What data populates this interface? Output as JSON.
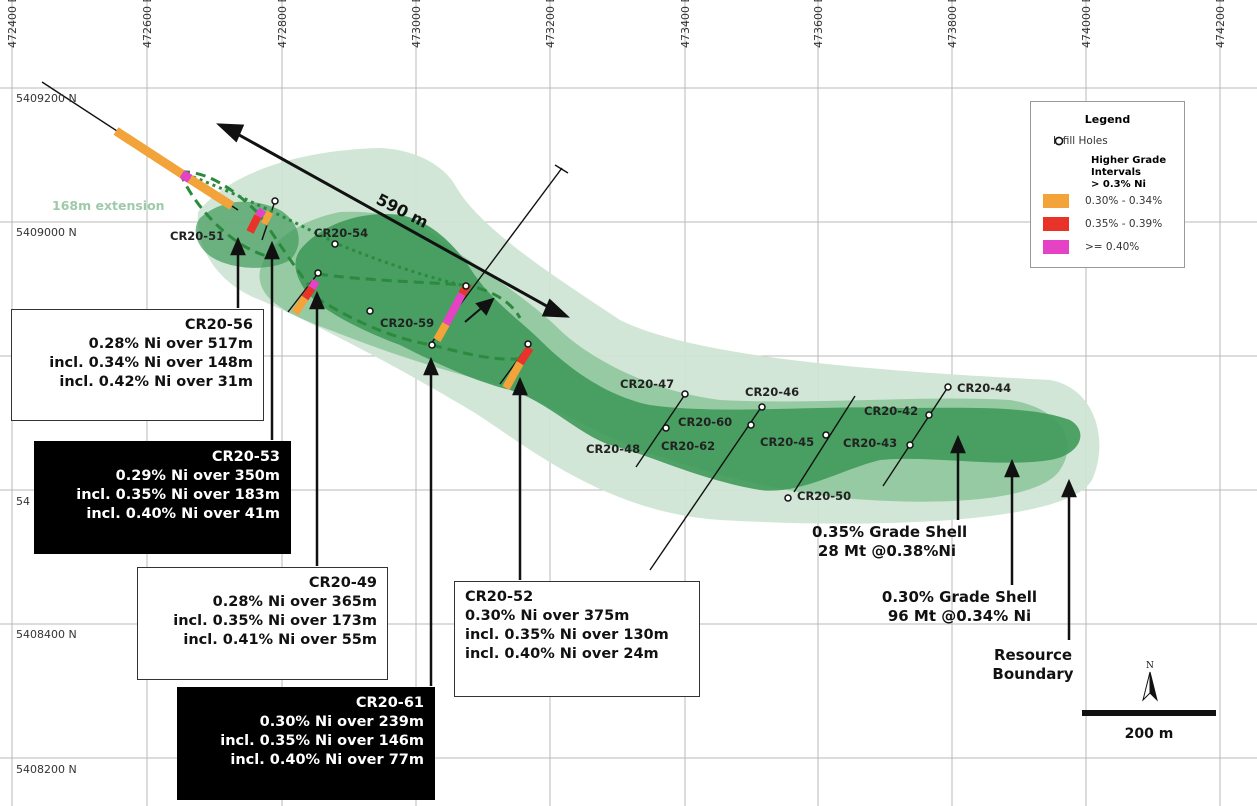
{
  "easting_labels": [
    "472400 E",
    "472600 E",
    "472800 E",
    "473000 E",
    "473200 E",
    "473400 E",
    "473600 E",
    "473800 E",
    "474000 E",
    "474200 E"
  ],
  "northing_labels": [
    "5409200 N",
    "5409000 N",
    "54",
    "5408400 N",
    "5408200 N"
  ],
  "extension_label": "168m extension",
  "distance_label": "590 m",
  "holes": [
    "CR20-51",
    "CR20-54",
    "CR20-59",
    "CR20-47",
    "CR20-46",
    "CR20-60",
    "CR20-62",
    "CR20-48",
    "CR20-45",
    "CR20-50",
    "CR20-42",
    "CR20-43",
    "CR20-44"
  ],
  "callouts": {
    "cr20_56": {
      "id": "CR20-56",
      "lines": [
        "0.28% Ni over 517m",
        "incl. 0.34% Ni over 148m",
        "incl. 0.42% Ni over 31m"
      ]
    },
    "cr20_53": {
      "id": "CR20-53",
      "lines": [
        "0.29% Ni over 350m",
        "incl. 0.35% Ni over 183m",
        "incl. 0.40% Ni over 41m"
      ]
    },
    "cr20_49": {
      "id": "CR20-49",
      "lines": [
        "0.28% Ni over 365m",
        "incl. 0.35% Ni over 173m",
        "incl. 0.41% Ni over 55m"
      ]
    },
    "cr20_61": {
      "id": "CR20-61",
      "lines": [
        "0.30% Ni over 239m",
        "incl. 0.35% Ni over 146m",
        "incl. 0.40% Ni over 77m"
      ]
    },
    "cr20_52": {
      "id": "CR20-52",
      "lines": [
        "0.30% Ni over 375m",
        "incl. 0.35% Ni over 130m",
        "incl. 0.40% Ni over 24m"
      ]
    }
  },
  "shells": {
    "shell_035": [
      "0.35% Grade Shell",
      "28 Mt @0.38%Ni"
    ],
    "shell_030": [
      "0.30% Grade Shell",
      "96 Mt @0.34% Ni"
    ],
    "resource": [
      "Resource",
      "Boundary"
    ]
  },
  "legend": {
    "title": "Legend",
    "infill": "Infill Holes",
    "higher_grade": [
      "Higher Grade Intervals",
      "> 0.3% Ni"
    ],
    "classes": [
      {
        "label": "0.30% - 0.34%",
        "color": "#f2a33a"
      },
      {
        "label": "0.35% - 0.39%",
        "color": "#e8322a"
      },
      {
        "label": ">= 0.40%",
        "color": "#e542c5"
      }
    ]
  },
  "north_label": "N",
  "scale_label": "200 m",
  "colors": {
    "shell_outer": "#cfe5d4",
    "shell_mid": "#8fc79d",
    "shell_inner": "#3f9a5a",
    "trace_dashed": "#2b8a3e"
  }
}
